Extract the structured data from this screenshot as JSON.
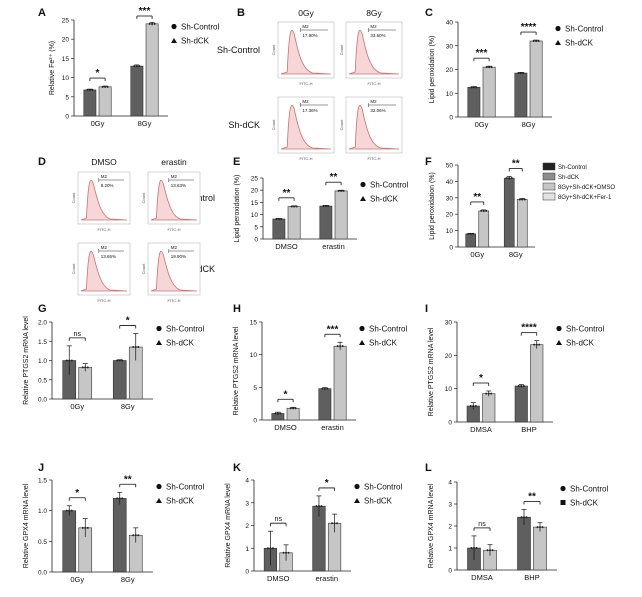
{
  "figure": {
    "panel_letters": [
      "A",
      "B",
      "C",
      "D",
      "E",
      "F",
      "G",
      "H",
      "I",
      "J",
      "K",
      "L"
    ]
  },
  "colors": {
    "dark": "#5f5f5f",
    "light": "#c6c6c6",
    "mid": "#8c8c8c",
    "lightest": "#e2e2e2",
    "flow_line": "#d07070",
    "flow_fill": "#f6d6d6",
    "axis": "#222222"
  },
  "chart_data": [
    {
      "id": "A",
      "type": "bar",
      "ylabel": "Relative Fe²⁺ (%)",
      "ylim": [
        0,
        25
      ],
      "yticks": [
        0,
        5,
        10,
        15,
        20,
        25
      ],
      "categories": [
        "0Gy",
        "8Gy"
      ],
      "series": [
        {
          "name": "Sh-Control",
          "values": [
            6.8,
            13.0
          ],
          "errors": [
            0.2,
            0.3
          ]
        },
        {
          "name": "Sh-dCK",
          "values": [
            7.6,
            24.0
          ],
          "errors": [
            0.2,
            0.4
          ]
        }
      ],
      "legend": [
        "Sh-Control",
        "Sh-dCK"
      ],
      "legend_markers": [
        "circle",
        "triangle"
      ],
      "sig": [
        {
          "cat": 0,
          "label": "*"
        },
        {
          "cat": 1,
          "label": "***"
        }
      ]
    },
    {
      "id": "C",
      "type": "bar",
      "ylabel": "Lipid peroxidation (%)",
      "ylim": [
        0,
        40
      ],
      "yticks": [
        0,
        10,
        20,
        30,
        40
      ],
      "categories": [
        "0Gy",
        "8Gy"
      ],
      "series": [
        {
          "name": "Sh-Control",
          "values": [
            12.5,
            18.5
          ],
          "errors": [
            0.3,
            0.3
          ]
        },
        {
          "name": "Sh-dCK",
          "values": [
            21.0,
            32.0
          ],
          "errors": [
            0.4,
            0.4
          ]
        }
      ],
      "legend": [
        "Sh-Control",
        "Sh-dCK"
      ],
      "legend_markers": [
        "circle",
        "triangle"
      ],
      "sig": [
        {
          "cat": 0,
          "label": "***"
        },
        {
          "cat": 1,
          "label": "****"
        }
      ]
    },
    {
      "id": "E",
      "type": "bar",
      "ylabel": "Lipid peroxidation (%)",
      "ylim": [
        0,
        25
      ],
      "yticks": [
        0,
        5,
        10,
        15,
        20,
        25
      ],
      "categories": [
        "DMSO",
        "erastin"
      ],
      "series": [
        {
          "name": "Sh-Control",
          "values": [
            8.2,
            13.5
          ],
          "errors": [
            0.2,
            0.3
          ]
        },
        {
          "name": "Sh-dCK",
          "values": [
            13.3,
            19.7
          ],
          "errors": [
            0.3,
            0.3
          ]
        }
      ],
      "legend": [
        "Sh-Control",
        "Sh-dCK"
      ],
      "legend_markers": [
        "circle",
        "triangle"
      ],
      "sig": [
        {
          "cat": 0,
          "label": "**"
        },
        {
          "cat": 1,
          "label": "**"
        }
      ]
    },
    {
      "id": "F",
      "type": "bar",
      "ylabel": "Lipid peroxidation (%)",
      "ylim": [
        0,
        50
      ],
      "yticks": [
        0,
        10,
        20,
        30,
        40,
        50
      ],
      "categories": [
        "0Gy",
        "8Gy"
      ],
      "series": [
        {
          "name": "Sh-Control",
          "values": [
            8.0,
            42.0
          ],
          "errors": [
            0.3,
            1.0
          ]
        },
        {
          "name": "Sh-dCK",
          "values": [
            22.0,
            29.0
          ],
          "errors": [
            0.6,
            0.6
          ]
        }
      ],
      "legend": [
        "Sh-Control",
        "Sh-dCK",
        "8Gy+Sh-dCK+DMSO",
        "8Gy+Sh-dCK+Fer-1"
      ],
      "sig": [
        {
          "cat": 0,
          "label": "**"
        },
        {
          "cat": 1,
          "label": "**"
        }
      ]
    },
    {
      "id": "G",
      "type": "bar",
      "ylabel": "Relative PTGS2 mRNA level",
      "ylim": [
        0,
        2.0
      ],
      "yticks": [
        0.0,
        0.5,
        1.0,
        1.5,
        2.0
      ],
      "categories": [
        "0Gy",
        "8Gy"
      ],
      "series": [
        {
          "name": "Sh-Control",
          "values": [
            1.0,
            1.0
          ],
          "errors": [
            0.38,
            0.02
          ]
        },
        {
          "name": "Sh-dCK",
          "values": [
            0.82,
            1.35
          ],
          "errors": [
            0.1,
            0.35
          ]
        }
      ],
      "legend": [
        "Sh-Control",
        "Sh-dCK"
      ],
      "legend_markers": [
        "circle",
        "triangle"
      ],
      "sig": [
        {
          "cat": 0,
          "label": "ns"
        },
        {
          "cat": 1,
          "label": "*"
        }
      ]
    },
    {
      "id": "H",
      "type": "bar",
      "ylabel": "Relative PTGS2 mRNA level",
      "ylim": [
        0,
        15
      ],
      "yticks": [
        0,
        5,
        10,
        15
      ],
      "categories": [
        "DMSO",
        "erastin"
      ],
      "series": [
        {
          "name": "Sh-Control",
          "values": [
            1.0,
            4.8
          ],
          "errors": [
            0.2,
            0.15
          ]
        },
        {
          "name": "Sh-dCK",
          "values": [
            1.8,
            11.3
          ],
          "errors": [
            0.15,
            0.6
          ]
        }
      ],
      "legend": [
        "Sh-Control",
        "Sh-dCK"
      ],
      "legend_markers": [
        "circle",
        "triangle"
      ],
      "sig": [
        {
          "cat": 0,
          "label": "*"
        },
        {
          "cat": 1,
          "label": "***"
        }
      ]
    },
    {
      "id": "I",
      "type": "bar",
      "ylabel": "Relative PTGS2 mRNA level",
      "ylim": [
        0,
        30
      ],
      "yticks": [
        0,
        10,
        20,
        30
      ],
      "categories": [
        "DMSA",
        "BHP"
      ],
      "series": [
        {
          "name": "Sh-Control",
          "values": [
            4.8,
            10.8
          ],
          "errors": [
            1.0,
            0.4
          ]
        },
        {
          "name": "Sh-dCK",
          "values": [
            8.5,
            23.2
          ],
          "errors": [
            0.8,
            1.2
          ]
        }
      ],
      "legend": [
        "Sh-Control",
        "Sh-dCK"
      ],
      "legend_markers": [
        "circle",
        "triangle"
      ],
      "sig": [
        {
          "cat": 0,
          "label": "*"
        },
        {
          "cat": 1,
          "label": "****"
        }
      ]
    },
    {
      "id": "J",
      "type": "bar",
      "ylabel": "Relative GPX4 mRNA level",
      "ylim": [
        0,
        1.5
      ],
      "yticks": [
        0.0,
        0.5,
        1.0,
        1.5
      ],
      "categories": [
        "0Gy",
        "8Gy"
      ],
      "series": [
        {
          "name": "Sh-Control",
          "values": [
            1.0,
            1.2
          ],
          "errors": [
            0.08,
            0.1
          ]
        },
        {
          "name": "Sh-dCK",
          "values": [
            0.72,
            0.6
          ],
          "errors": [
            0.15,
            0.12
          ]
        }
      ],
      "legend": [
        "Sh-Control",
        "Sh-dCK"
      ],
      "legend_markers": [
        "circle",
        "triangle"
      ],
      "sig": [
        {
          "cat": 0,
          "label": "*"
        },
        {
          "cat": 1,
          "label": "**"
        }
      ]
    },
    {
      "id": "K",
      "type": "bar",
      "ylabel": "Relative GPX4 mRNA level",
      "ylim": [
        0,
        4
      ],
      "yticks": [
        0,
        1,
        2,
        3,
        4
      ],
      "categories": [
        "DMSO",
        "erastin"
      ],
      "series": [
        {
          "name": "Sh-Control",
          "values": [
            1.0,
            2.85
          ],
          "errors": [
            0.75,
            0.45
          ]
        },
        {
          "name": "Sh-dCK",
          "values": [
            0.8,
            2.1
          ],
          "errors": [
            0.35,
            0.4
          ]
        }
      ],
      "legend": [
        "Sh-Control",
        "Sh-dCK"
      ],
      "legend_markers": [
        "circle",
        "triangle"
      ],
      "sig": [
        {
          "cat": 0,
          "label": "ns"
        },
        {
          "cat": 1,
          "label": "*"
        }
      ]
    },
    {
      "id": "L",
      "type": "bar",
      "ylabel": "Relative GPX4 mRNA level",
      "ylim": [
        0,
        4
      ],
      "yticks": [
        0,
        1,
        2,
        3,
        4
      ],
      "categories": [
        "DMSA",
        "BHP"
      ],
      "series": [
        {
          "name": "Sh-Control",
          "values": [
            1.0,
            2.4
          ],
          "errors": [
            0.55,
            0.35
          ]
        },
        {
          "name": "Sh-dCK",
          "values": [
            0.9,
            1.95
          ],
          "errors": [
            0.25,
            0.2
          ]
        }
      ],
      "legend": [
        "Sh-Control",
        "Sh-dCK"
      ],
      "legend_markers": [
        "circle",
        "square"
      ],
      "sig": [
        {
          "cat": 0,
          "label": "ns"
        },
        {
          "cat": 1,
          "label": "**"
        }
      ]
    }
  ],
  "flow_panels": [
    {
      "id": "B",
      "col_titles": [
        "0Gy",
        "8Gy"
      ],
      "row_titles": [
        "Sh-Control",
        "Sh-dCK"
      ],
      "cells": [
        {
          "label": "M2",
          "pct": "17.90%"
        },
        {
          "label": "M2",
          "pct": "33.60%"
        },
        {
          "label": "M2",
          "pct": "17.36%"
        },
        {
          "label": "M2",
          "pct": "32.06%"
        }
      ],
      "xaxis": "FITC-H",
      "yaxis": "Count"
    },
    {
      "id": "D",
      "col_titles": [
        "DMSO",
        "erastin"
      ],
      "row_titles": [
        "Sh-Control",
        "Sh-dCK"
      ],
      "cells": [
        {
          "label": "M2",
          "pct": "8.20%"
        },
        {
          "label": "M2",
          "pct": "13.63%"
        },
        {
          "label": "M2",
          "pct": "13.65%"
        },
        {
          "label": "M2",
          "pct": "19.90%"
        }
      ],
      "xaxis": "FITC-H",
      "yaxis": "Count"
    }
  ]
}
